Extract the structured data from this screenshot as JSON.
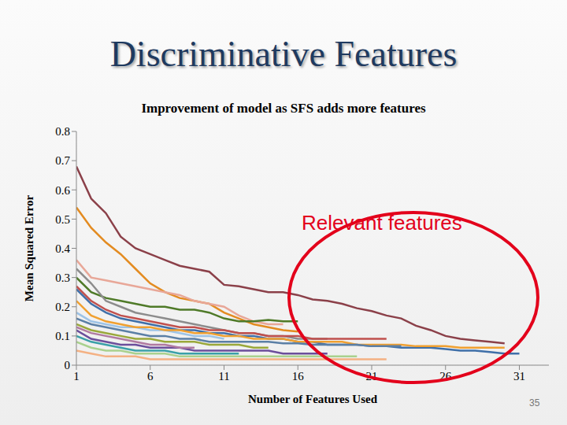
{
  "chart_data": {
    "type": "line",
    "title": "Discriminative Features",
    "subtitle": "Improvement of model as SFS adds more features",
    "x_label": "Number of Features Used",
    "y_label": "Mean Squared Error",
    "annotations": [
      "Relevant features"
    ],
    "footer": "35",
    "grid": false,
    "x": [
      1,
      2,
      3,
      4,
      5,
      6,
      7,
      8,
      9,
      10,
      11,
      12,
      13,
      14,
      15,
      16,
      17,
      18,
      19,
      20,
      21,
      22,
      23,
      24,
      25,
      26,
      27,
      28,
      29,
      30,
      31
    ],
    "xlim": [
      1,
      33
    ],
    "xticks": [
      1,
      6,
      11,
      16,
      21,
      26,
      31
    ],
    "ylim": [
      0,
      0.8
    ],
    "yticks": [
      0,
      0.1,
      0.2,
      0.3,
      0.4,
      0.5,
      0.6,
      0.7,
      0.8
    ],
    "series": [
      {
        "color": "#8b4049",
        "values": [
          0.68,
          0.57,
          0.52,
          0.44,
          0.4,
          0.38,
          0.36,
          0.34,
          0.33,
          0.32,
          0.275,
          0.27,
          0.26,
          0.25,
          0.25,
          0.24,
          0.225,
          0.22,
          0.21,
          0.195,
          0.185,
          0.17,
          0.16,
          0.135,
          0.12,
          0.1,
          0.09,
          0.085,
          0.08,
          0.075,
          null
        ]
      },
      {
        "color": "#e38b20",
        "values": [
          0.54,
          0.47,
          0.42,
          0.38,
          0.33,
          0.28,
          0.25,
          0.23,
          0.22,
          0.21,
          0.18,
          0.16,
          0.14,
          0.13,
          0.12,
          0.115,
          null,
          null,
          null,
          null,
          null,
          null,
          null,
          null,
          null,
          null,
          null,
          null,
          null,
          null,
          null
        ]
      },
      {
        "color": "#e8a798",
        "values": [
          0.36,
          0.3,
          0.29,
          0.28,
          0.27,
          0.26,
          0.25,
          0.24,
          0.22,
          0.21,
          0.2,
          0.17,
          0.15,
          0.14,
          0.14,
          null,
          null,
          null,
          null,
          null,
          null,
          null,
          null,
          null,
          null,
          null,
          null,
          null,
          null,
          null,
          null
        ]
      },
      {
        "color": "#4f7a28",
        "values": [
          0.3,
          0.25,
          0.23,
          0.22,
          0.21,
          0.2,
          0.2,
          0.19,
          0.19,
          0.18,
          0.16,
          0.15,
          0.15,
          0.155,
          0.15,
          0.15,
          null,
          null,
          null,
          null,
          null,
          null,
          null,
          null,
          null,
          null,
          null,
          null,
          null,
          null,
          null
        ]
      },
      {
        "color": "#3f6fa8",
        "values": [
          0.26,
          0.21,
          0.18,
          0.16,
          0.15,
          0.14,
          0.13,
          0.12,
          0.12,
          0.11,
          0.11,
          0.1,
          0.1,
          0.09,
          0.09,
          0.08,
          0.08,
          0.07,
          0.07,
          0.07,
          0.065,
          0.065,
          0.06,
          0.06,
          0.06,
          0.055,
          0.05,
          0.05,
          0.045,
          0.04,
          0.04
        ]
      },
      {
        "color": "#8c8c8c",
        "values": [
          0.33,
          0.28,
          0.22,
          0.2,
          0.18,
          0.17,
          0.16,
          0.15,
          0.14,
          0.13,
          0.12,
          0.11,
          0.11,
          0.1,
          0.1,
          0.09,
          0.09,
          0.09,
          null,
          null,
          null,
          null,
          null,
          null,
          null,
          null,
          null,
          null,
          null,
          null,
          null
        ]
      },
      {
        "color": "#9dc3e6",
        "values": [
          0.18,
          0.15,
          0.14,
          0.13,
          0.13,
          0.12,
          0.12,
          0.11,
          0.1,
          0.1,
          0.09,
          null,
          null,
          null,
          null,
          null,
          null,
          null,
          null,
          null,
          null,
          null,
          null,
          null,
          null,
          null,
          null,
          null,
          null,
          null,
          null
        ]
      },
      {
        "color": "#9aa83a",
        "values": [
          0.14,
          0.12,
          0.11,
          0.1,
          0.09,
          0.09,
          0.08,
          0.08,
          0.08,
          0.07,
          0.07,
          0.07,
          0.06,
          0.06,
          null,
          null,
          null,
          null,
          null,
          null,
          null,
          null,
          null,
          null,
          null,
          null,
          null,
          null,
          null,
          null,
          null
        ]
      },
      {
        "color": "#6b4e9b",
        "values": [
          0.12,
          0.09,
          0.08,
          0.07,
          0.07,
          0.06,
          0.06,
          0.06,
          0.05,
          0.05,
          0.05,
          0.05,
          0.05,
          0.05,
          0.04,
          0.04,
          0.04,
          0.04,
          null,
          null,
          null,
          null,
          null,
          null,
          null,
          null,
          null,
          null,
          null,
          null,
          null
        ]
      },
      {
        "color": "#3aa0a8",
        "values": [
          0.1,
          0.08,
          0.07,
          0.06,
          0.05,
          0.05,
          0.05,
          0.04,
          0.04,
          0.04,
          0.04,
          0.04,
          null,
          null,
          null,
          null,
          null,
          null,
          null,
          null,
          null,
          null,
          null,
          null,
          null,
          null,
          null,
          null,
          null,
          null,
          null
        ]
      },
      {
        "color": "#f0a030",
        "values": [
          0.22,
          0.17,
          0.15,
          0.14,
          0.13,
          0.13,
          0.12,
          0.12,
          0.11,
          0.11,
          0.1,
          0.1,
          0.09,
          0.09,
          0.09,
          0.08,
          0.08,
          0.08,
          0.08,
          0.07,
          0.07,
          0.07,
          0.07,
          0.065,
          0.065,
          0.065,
          0.06,
          0.06,
          0.06,
          0.06,
          null
        ]
      },
      {
        "color": "#a9d18e",
        "values": [
          0.08,
          0.06,
          0.05,
          0.05,
          0.04,
          0.04,
          0.04,
          0.03,
          0.03,
          0.03,
          0.03,
          0.03,
          0.03,
          0.03,
          0.03,
          0.03,
          0.03,
          0.03,
          0.03,
          0.03,
          null,
          null,
          null,
          null,
          null,
          null,
          null,
          null,
          null,
          null,
          null
        ]
      },
      {
        "color": "#f4b183",
        "values": [
          0.05,
          0.04,
          0.03,
          0.03,
          0.03,
          0.02,
          0.02,
          0.02,
          0.02,
          0.02,
          0.02,
          0.02,
          0.02,
          0.02,
          0.02,
          0.02,
          0.02,
          0.02,
          0.02,
          0.02,
          0.02,
          0.02,
          null,
          null,
          null,
          null,
          null,
          null,
          null,
          null,
          null
        ]
      },
      {
        "color": "#c0504d",
        "values": [
          0.27,
          0.22,
          0.19,
          0.17,
          0.16,
          0.15,
          0.14,
          0.13,
          0.13,
          0.12,
          0.12,
          0.11,
          0.11,
          0.1,
          0.1,
          0.1,
          0.09,
          0.09,
          0.09,
          0.09,
          0.09,
          0.09,
          null,
          null,
          null,
          null,
          null,
          null,
          null,
          null,
          null
        ]
      },
      {
        "color": "#5b7fa5",
        "values": [
          0.16,
          0.14,
          0.13,
          0.12,
          0.11,
          0.1,
          0.1,
          0.09,
          0.09,
          0.08,
          0.08,
          0.08,
          0.08,
          0.08,
          0.075,
          0.075,
          0.07,
          0.07,
          0.07,
          0.07,
          0.065,
          0.065,
          0.065,
          null,
          null,
          null,
          null,
          null,
          null,
          null,
          null
        ]
      },
      {
        "color": "#b07aa1",
        "values": [
          0.13,
          0.11,
          0.1,
          0.09,
          0.08,
          0.07,
          0.07,
          0.06,
          0.06,
          null,
          null,
          null,
          null,
          null,
          null,
          null,
          null,
          null,
          null,
          null,
          null,
          null,
          null,
          null,
          null,
          null,
          null,
          null,
          null,
          null,
          null
        ]
      }
    ]
  }
}
